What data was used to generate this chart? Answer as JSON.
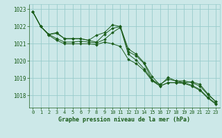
{
  "background_color": "#cce8e8",
  "grid_color": "#99cccc",
  "line_color": "#1a5c1a",
  "title": "Graphe pression niveau de la mer (hPa)",
  "xlim": [
    -0.5,
    23.5
  ],
  "ylim": [
    1017.3,
    1023.3
  ],
  "yticks": [
    1018,
    1019,
    1020,
    1021,
    1022,
    1023
  ],
  "xticks": [
    0,
    1,
    2,
    3,
    4,
    5,
    6,
    7,
    8,
    9,
    10,
    11,
    12,
    13,
    14,
    15,
    16,
    17,
    18,
    19,
    20,
    21,
    22,
    23
  ],
  "series": [
    {
      "x": [
        0,
        1,
        2,
        3,
        4,
        5,
        6,
        7,
        8,
        9,
        10,
        11,
        12,
        13,
        14,
        15,
        16,
        17,
        18,
        19,
        20,
        21,
        22,
        23
      ],
      "y": [
        1022.85,
        1022.0,
        1021.55,
        1021.65,
        1021.3,
        1021.3,
        1021.3,
        1021.2,
        1021.5,
        1021.65,
        1022.1,
        1022.0,
        1020.7,
        1020.4,
        1019.9,
        1019.1,
        1018.6,
        1019.05,
        1018.85,
        1018.75,
        1018.8,
        1018.65,
        1018.1,
        1017.65
      ]
    },
    {
      "x": [
        0,
        1,
        2,
        3,
        4,
        5,
        6,
        7,
        8,
        9,
        10,
        11,
        12,
        13,
        14,
        15,
        16,
        17,
        18,
        19,
        20,
        21,
        22,
        23
      ],
      "y": [
        1022.85,
        1022.0,
        1021.55,
        1021.6,
        1021.3,
        1021.3,
        1021.3,
        1021.2,
        1021.1,
        1021.55,
        1021.9,
        1022.0,
        1020.55,
        1020.3,
        1019.85,
        1018.9,
        1018.65,
        1018.95,
        1018.85,
        1018.85,
        1018.75,
        1018.55,
        1018.05,
        1017.65
      ]
    },
    {
      "x": [
        0,
        1,
        2,
        3,
        4,
        5,
        6,
        7,
        8,
        9,
        10,
        11,
        12,
        13,
        14,
        15,
        16,
        17,
        18,
        19,
        20,
        21,
        22,
        23
      ],
      "y": [
        1022.85,
        1022.0,
        1021.55,
        1021.3,
        1021.1,
        1021.1,
        1021.15,
        1021.1,
        1021.05,
        1021.25,
        1021.65,
        1021.95,
        1020.4,
        1020.05,
        1019.55,
        1018.9,
        1018.55,
        1018.75,
        1018.75,
        1018.75,
        1018.6,
        1018.35,
        1017.9,
        1017.55
      ]
    },
    {
      "x": [
        0,
        1,
        2,
        3,
        4,
        5,
        6,
        7,
        8,
        9,
        10,
        11,
        12,
        13,
        14,
        15,
        16,
        17,
        18,
        19,
        20,
        21,
        22,
        23
      ],
      "y": [
        1022.85,
        1022.0,
        1021.5,
        1021.2,
        1021.0,
        1021.0,
        1021.0,
        1021.0,
        1020.95,
        1021.1,
        1021.0,
        1020.85,
        1020.1,
        1019.85,
        1019.45,
        1018.85,
        1018.55,
        1018.75,
        1018.75,
        1018.7,
        1018.55,
        1018.3,
        1017.85,
        1017.5
      ]
    }
  ]
}
